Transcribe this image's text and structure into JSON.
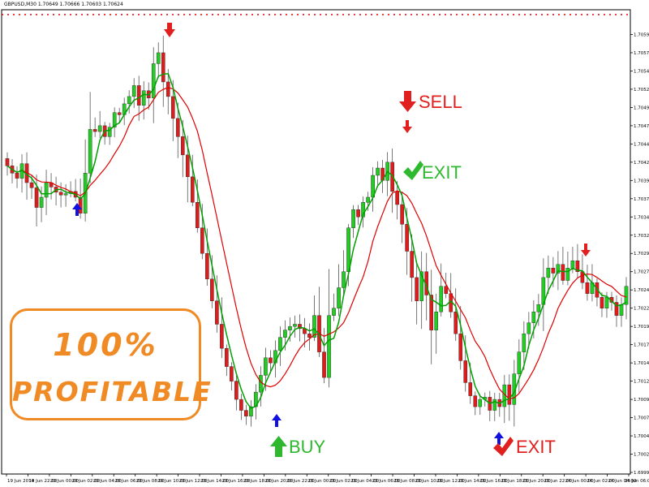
{
  "window": {
    "title_bar": "GBPUSD,M30  1.70649 1.70666 1.70603 1.70624"
  },
  "promo": {
    "line1": "100%",
    "line2": "PROFITABLE",
    "color": "#f08a24"
  },
  "signals": {
    "sell_label": "SELL",
    "exit_label_top": "EXIT",
    "buy_label": "BUY",
    "exit_label_bottom": "EXIT",
    "sell_color": "#e0201e",
    "buy_color": "#2db82d",
    "arrow_blue": "#1010e0"
  },
  "chart_data": {
    "type": "candlestick",
    "symbol": "GBPUSD",
    "timeframe": "M30",
    "ylim": [
      1.69995,
      1.7062
    ],
    "y_ticks": [
      "1.70595",
      "1.70570",
      "1.70545",
      "1.70520",
      "1.70495",
      "1.70470",
      "1.70445",
      "1.70420",
      "1.70395",
      "1.70370",
      "1.70345",
      "1.70320",
      "1.70295",
      "1.70270",
      "1.70245",
      "1.70220",
      "1.70195",
      "1.70170",
      "1.70145",
      "1.70120",
      "1.70095",
      "1.70070",
      "1.70045",
      "1.70020",
      "1.69995"
    ],
    "x_ticks": [
      "19 Jun 2014",
      "19 Jun 22:00",
      "20 Jun 00:00",
      "20 Jun 02:00",
      "20 Jun 04:00",
      "20 Jun 06:00",
      "20 Jun 08:00",
      "20 Jun 10:00",
      "20 Jun 12:00",
      "20 Jun 14:00",
      "20 Jun 16:00",
      "20 Jun 18:00",
      "20 Jun 20:00",
      "20 Jun 22:00",
      "23 Jun 00:00",
      "23 Jun 02:00",
      "23 Jun 04:00",
      "23 Jun 06:00",
      "23 Jun 08:00",
      "23 Jun 10:00",
      "23 Jun 12:00",
      "23 Jun 14:00",
      "23 Jun 16:00",
      "23 Jun 18:00",
      "23 Jun 20:00",
      "23 Jun 22:00",
      "24 Jun 00:00",
      "24 Jun 02:00",
      "24 Jun 04:00",
      "24 Jun 06:00"
    ],
    "closes": [
      1.70415,
      1.70405,
      1.70398,
      1.70418,
      1.70392,
      1.70385,
      1.70358,
      1.70372,
      1.70392,
      1.70386,
      1.70379,
      1.70375,
      1.70377,
      1.7038,
      1.70372,
      1.7035,
      1.70405,
      1.70465,
      1.70462,
      1.7047,
      1.70455,
      1.70468,
      1.70488,
      1.70485,
      1.705,
      1.7051,
      1.70525,
      1.70498,
      1.70518,
      1.70508,
      1.70555,
      1.7057,
      1.7053,
      1.7051,
      1.7048,
      1.70455,
      1.7043,
      1.704,
      1.70365,
      1.7033,
      1.70295,
      1.7026,
      1.7023,
      1.70198,
      1.70165,
      1.7014,
      1.7012,
      1.70095,
      1.7008,
      1.70072,
      1.70085,
      1.70105,
      1.70128,
      1.70152,
      1.70145,
      1.70162,
      1.7018,
      1.7019,
      1.70195,
      1.70198,
      1.70192,
      1.70185,
      1.7018,
      1.7021,
      1.7016,
      1.70125,
      1.7021,
      1.7022,
      1.70248,
      1.7027,
      1.7033,
      1.70355,
      1.70345,
      1.70365,
      1.70372,
      1.70402,
      1.70412,
      1.70395,
      1.7042,
      1.7038,
      1.70362,
      1.70335,
      1.70298,
      1.70262,
      1.7023,
      1.7027,
      1.70238,
      1.7019,
      1.70215,
      1.7025,
      1.7024,
      1.70215,
      1.70185,
      1.70148,
      1.70118,
      1.701,
      1.70085,
      1.70095,
      1.70098,
      1.7008,
      1.70095,
      1.70085,
      1.70115,
      1.70088,
      1.7013,
      1.7016,
      1.70185,
      1.702,
      1.70215,
      1.70225,
      1.70262,
      1.70275,
      1.70268,
      1.7028,
      1.70258,
      1.70275,
      1.70285,
      1.7027,
      1.70255,
      1.7024,
      1.70255,
      1.70235,
      1.7022,
      1.70235,
      1.70228,
      1.7021,
      1.70225,
      1.7025
    ],
    "fast_ma_color": "#00a000",
    "slow_ma_color": "#e00000"
  }
}
